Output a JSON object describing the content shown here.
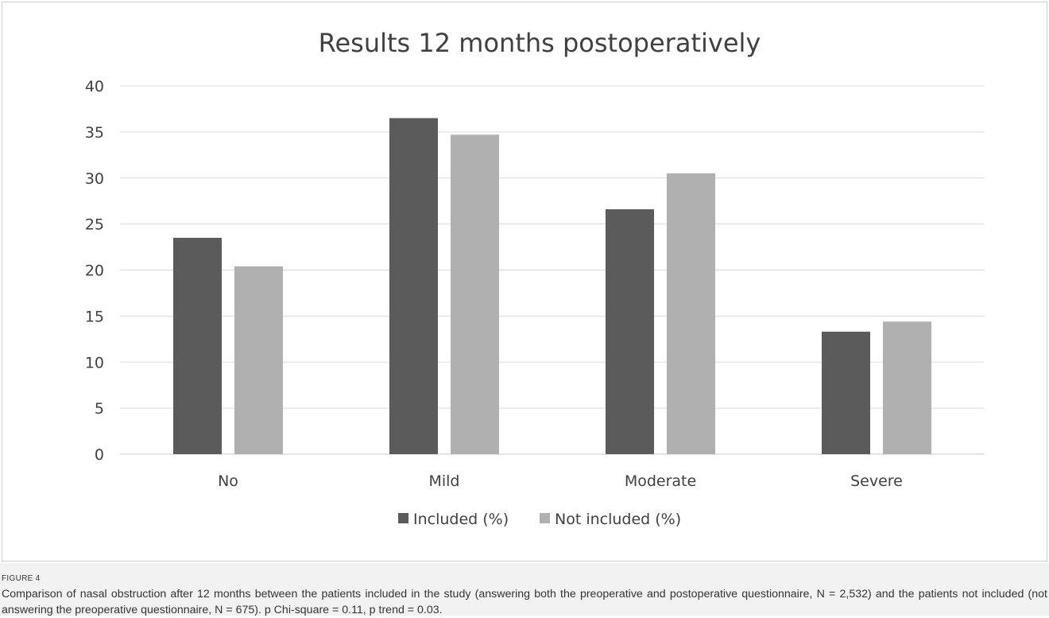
{
  "figure": {
    "label": "FIGURE 4",
    "caption": "Comparison of nasal obstruction after 12 months between the patients included in the study (answering both the preoperative and postoperative questionnaire, N = 2,532) and the patients not included (not answering the preoperative questionnaire, N = 675). p Chi-square = 0.11, p trend = 0.03."
  },
  "chart_data": {
    "type": "bar",
    "title": "Results 12 months postoperatively",
    "xlabel": "",
    "ylabel": "",
    "categories": [
      "No",
      "Mild",
      "Moderate",
      "Severe"
    ],
    "ylim": [
      0,
      40
    ],
    "yticks": [
      0,
      5,
      10,
      15,
      20,
      25,
      30,
      35,
      40
    ],
    "grid": true,
    "legend_position": "bottom",
    "series": [
      {
        "name": "Included (%)",
        "color": "#5b5b5b",
        "values": [
          23.5,
          36.5,
          26.6,
          13.3
        ]
      },
      {
        "name": "Not included (%)",
        "color": "#b0b0b0",
        "values": [
          20.4,
          34.7,
          30.5,
          14.4
        ]
      }
    ]
  }
}
